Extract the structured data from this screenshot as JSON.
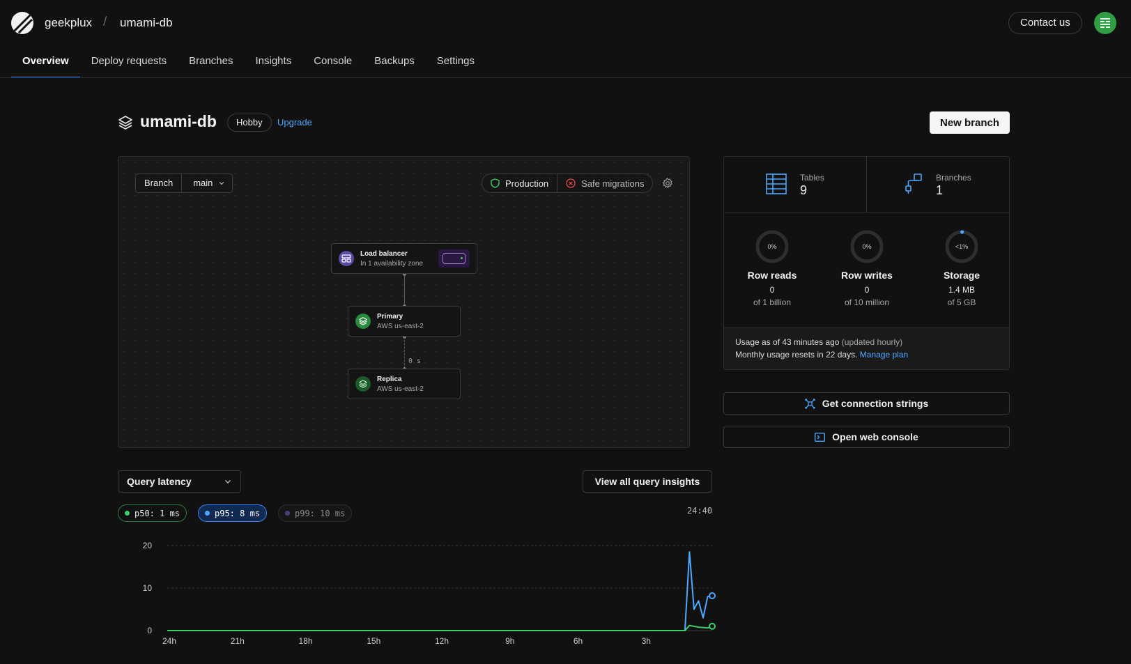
{
  "header": {
    "org": "geekplux",
    "separator": "/",
    "database": "umami-db",
    "contact_label": "Contact us"
  },
  "tabs": [
    {
      "label": "Overview",
      "active": true
    },
    {
      "label": "Deploy requests"
    },
    {
      "label": "Branches"
    },
    {
      "label": "Insights"
    },
    {
      "label": "Console"
    },
    {
      "label": "Backups"
    },
    {
      "label": "Settings"
    }
  ],
  "page": {
    "title": "umami-db",
    "plan": "Hobby",
    "upgrade_label": "Upgrade",
    "new_branch_label": "New branch"
  },
  "diagram": {
    "branch_label": "Branch",
    "branch_value": "main",
    "production_label": "Production",
    "safe_migrations_label": "Safe migrations",
    "load_balancer": {
      "name": "Load balancer",
      "detail": "In 1 availability zone"
    },
    "primary": {
      "name": "Primary",
      "detail": "AWS us-east-2"
    },
    "replica": {
      "name": "Replica",
      "detail": "AWS us-east-2"
    },
    "replication_lag": "0 s"
  },
  "stats": {
    "tables": {
      "label": "Tables",
      "value": "9"
    },
    "branches": {
      "label": "Branches",
      "value": "1"
    },
    "usage": [
      {
        "name": "Row reads",
        "percent": "0%",
        "fraction": 0,
        "value": "0",
        "limit": "of 1 billion"
      },
      {
        "name": "Row writes",
        "percent": "0%",
        "fraction": 0,
        "value": "0",
        "limit": "of 10 million"
      },
      {
        "name": "Storage",
        "percent": "<1%",
        "fraction": 0.005,
        "value": "1.4 MB",
        "limit": "of 5 GB"
      }
    ],
    "usage_asof": "Usage as of 43 minutes ago",
    "usage_updated": "(updated hourly)",
    "usage_reset": "Monthly usage resets in 22 days.",
    "manage_plan": "Manage plan"
  },
  "actions": {
    "connection_strings": "Get connection strings",
    "web_console": "Open web console"
  },
  "latency": {
    "metric": "Query latency",
    "view_all": "View all query insights",
    "p50": "p50: 1 ms",
    "p95": "p95: 8 ms",
    "p99": "p99: 10 ms",
    "time_readout": "24:40",
    "colors": {
      "p50": "#3ecf6a",
      "p95": "#4ea8ff",
      "p99": "#6e56cf"
    }
  },
  "chart_data": {
    "type": "line",
    "title": "",
    "xlabel": "",
    "ylabel": "",
    "ylim": [
      0,
      20
    ],
    "xlim": [
      24,
      0
    ],
    "x_ticks": [
      "24h",
      "21h",
      "18h",
      "15h",
      "12h",
      "9h",
      "6h",
      "3h"
    ],
    "y_ticks": [
      0,
      10,
      20
    ],
    "grid": true,
    "series": [
      {
        "key": "p95",
        "color": "#4ea8ff",
        "x": [
          24,
          3.2,
          1.2,
          1.0,
          0.8,
          0.6,
          0.4,
          0.2,
          0.0
        ],
        "values": [
          0,
          0,
          0,
          18.5,
          5,
          7,
          3,
          8,
          8.2
        ]
      },
      {
        "key": "p50",
        "color": "#3ecf6a",
        "x": [
          24,
          3.2,
          1.2,
          1.0,
          0.6,
          0.2,
          0.0
        ],
        "values": [
          0,
          0,
          0,
          1.2,
          0.8,
          0.6,
          1.0
        ]
      }
    ]
  }
}
